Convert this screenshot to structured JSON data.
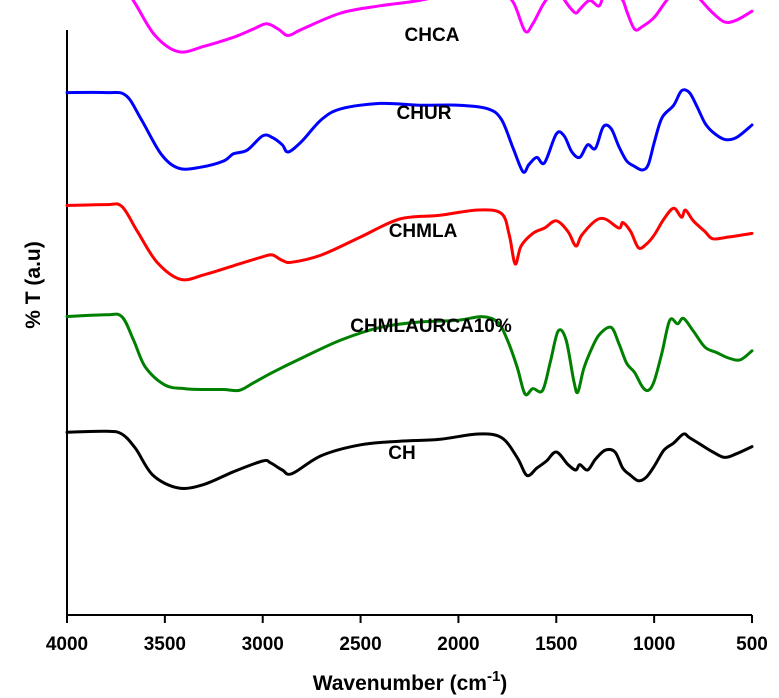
{
  "chart_data": {
    "type": "line",
    "xlabel": "Wavenumber (cm",
    "xlabel_sup": "-1",
    "xlabel_end": ")",
    "ylabel": "% T (a.u)",
    "xlim": [
      4000,
      500
    ],
    "x_reversed": true,
    "xticks": [
      4000,
      3500,
      3000,
      2500,
      2000,
      1500,
      1000,
      500
    ],
    "y_ticks_shown": false,
    "grid": false,
    "legend": "none (series labelled directly above each curve)",
    "series": [
      {
        "name": "CHCA",
        "color": "#ff00ff",
        "offset": 4,
        "points": [
          [
            4000,
            0.93
          ],
          [
            3800,
            0.94
          ],
          [
            3720,
            0.92
          ],
          [
            3650,
            0.7
          ],
          [
            3550,
            0.35
          ],
          [
            3430,
            0.17
          ],
          [
            3300,
            0.23
          ],
          [
            3150,
            0.33
          ],
          [
            3050,
            0.42
          ],
          [
            2980,
            0.48
          ],
          [
            2920,
            0.42
          ],
          [
            2870,
            0.35
          ],
          [
            2800,
            0.42
          ],
          [
            2600,
            0.6
          ],
          [
            2400,
            0.68
          ],
          [
            2200,
            0.74
          ],
          [
            2000,
            0.84
          ],
          [
            1900,
            0.92
          ],
          [
            1800,
            0.88
          ],
          [
            1720,
            0.72
          ],
          [
            1660,
            0.4
          ],
          [
            1620,
            0.48
          ],
          [
            1560,
            0.72
          ],
          [
            1500,
            0.84
          ],
          [
            1430,
            0.66
          ],
          [
            1400,
            0.6
          ],
          [
            1380,
            0.64
          ],
          [
            1330,
            0.74
          ],
          [
            1280,
            0.68
          ],
          [
            1250,
            0.86
          ],
          [
            1210,
            0.86
          ],
          [
            1160,
            0.74
          ],
          [
            1140,
            0.62
          ],
          [
            1100,
            0.42
          ],
          [
            1060,
            0.45
          ],
          [
            1000,
            0.55
          ],
          [
            950,
            0.7
          ],
          [
            900,
            0.84
          ],
          [
            860,
            0.92
          ],
          [
            820,
            0.88
          ],
          [
            760,
            0.74
          ],
          [
            700,
            0.6
          ],
          [
            640,
            0.5
          ],
          [
            580,
            0.52
          ],
          [
            500,
            0.62
          ]
        ]
      },
      {
        "name": "CHUR",
        "color": "#0000ff",
        "offset": 3,
        "points": [
          [
            4000,
            0.96
          ],
          [
            3800,
            0.96
          ],
          [
            3700,
            0.93
          ],
          [
            3620,
            0.66
          ],
          [
            3520,
            0.28
          ],
          [
            3430,
            0.12
          ],
          [
            3320,
            0.13
          ],
          [
            3200,
            0.2
          ],
          [
            3150,
            0.28
          ],
          [
            3080,
            0.32
          ],
          [
            3000,
            0.48
          ],
          [
            2950,
            0.46
          ],
          [
            2900,
            0.38
          ],
          [
            2870,
            0.3
          ],
          [
            2800,
            0.42
          ],
          [
            2700,
            0.66
          ],
          [
            2600,
            0.78
          ],
          [
            2400,
            0.84
          ],
          [
            2200,
            0.82
          ],
          [
            2000,
            0.82
          ],
          [
            1850,
            0.78
          ],
          [
            1780,
            0.66
          ],
          [
            1720,
            0.34
          ],
          [
            1670,
            0.08
          ],
          [
            1640,
            0.16
          ],
          [
            1600,
            0.24
          ],
          [
            1560,
            0.18
          ],
          [
            1500,
            0.5
          ],
          [
            1460,
            0.48
          ],
          [
            1420,
            0.3
          ],
          [
            1380,
            0.24
          ],
          [
            1340,
            0.38
          ],
          [
            1300,
            0.34
          ],
          [
            1260,
            0.58
          ],
          [
            1220,
            0.56
          ],
          [
            1180,
            0.36
          ],
          [
            1140,
            0.2
          ],
          [
            1100,
            0.14
          ],
          [
            1060,
            0.1
          ],
          [
            1030,
            0.16
          ],
          [
            1000,
            0.4
          ],
          [
            960,
            0.68
          ],
          [
            900,
            0.82
          ],
          [
            860,
            0.98
          ],
          [
            820,
            0.96
          ],
          [
            780,
            0.8
          ],
          [
            740,
            0.62
          ],
          [
            700,
            0.52
          ],
          [
            640,
            0.44
          ],
          [
            580,
            0.46
          ],
          [
            500,
            0.6
          ]
        ]
      },
      {
        "name": "CHMLA",
        "color": "#ff0000",
        "offset": 2,
        "points": [
          [
            4000,
            0.95
          ],
          [
            3800,
            0.96
          ],
          [
            3720,
            0.94
          ],
          [
            3640,
            0.66
          ],
          [
            3540,
            0.32
          ],
          [
            3420,
            0.13
          ],
          [
            3300,
            0.18
          ],
          [
            3150,
            0.28
          ],
          [
            3000,
            0.38
          ],
          [
            2950,
            0.4
          ],
          [
            2900,
            0.34
          ],
          [
            2850,
            0.32
          ],
          [
            2700,
            0.4
          ],
          [
            2500,
            0.6
          ],
          [
            2300,
            0.8
          ],
          [
            2100,
            0.84
          ],
          [
            1900,
            0.9
          ],
          [
            1780,
            0.86
          ],
          [
            1740,
            0.62
          ],
          [
            1710,
            0.3
          ],
          [
            1680,
            0.5
          ],
          [
            1620,
            0.64
          ],
          [
            1560,
            0.7
          ],
          [
            1500,
            0.78
          ],
          [
            1440,
            0.66
          ],
          [
            1400,
            0.5
          ],
          [
            1370,
            0.62
          ],
          [
            1300,
            0.78
          ],
          [
            1250,
            0.8
          ],
          [
            1180,
            0.7
          ],
          [
            1160,
            0.76
          ],
          [
            1120,
            0.66
          ],
          [
            1080,
            0.48
          ],
          [
            1040,
            0.52
          ],
          [
            1000,
            0.62
          ],
          [
            950,
            0.8
          ],
          [
            900,
            0.92
          ],
          [
            860,
            0.82
          ],
          [
            840,
            0.9
          ],
          [
            800,
            0.78
          ],
          [
            740,
            0.66
          ],
          [
            700,
            0.58
          ],
          [
            620,
            0.6
          ],
          [
            500,
            0.64
          ]
        ]
      },
      {
        "name": "CHMLAURCA10%",
        "color": "#008000",
        "offset": 1,
        "points": [
          [
            4000,
            0.96
          ],
          [
            3800,
            0.98
          ],
          [
            3720,
            0.96
          ],
          [
            3660,
            0.7
          ],
          [
            3600,
            0.4
          ],
          [
            3500,
            0.2
          ],
          [
            3400,
            0.16
          ],
          [
            3300,
            0.15
          ],
          [
            3200,
            0.15
          ],
          [
            3120,
            0.14
          ],
          [
            3050,
            0.22
          ],
          [
            2950,
            0.34
          ],
          [
            2800,
            0.5
          ],
          [
            2600,
            0.7
          ],
          [
            2400,
            0.84
          ],
          [
            2200,
            0.9
          ],
          [
            2000,
            0.92
          ],
          [
            1880,
            0.96
          ],
          [
            1800,
            0.9
          ],
          [
            1750,
            0.7
          ],
          [
            1700,
            0.4
          ],
          [
            1660,
            0.1
          ],
          [
            1620,
            0.16
          ],
          [
            1570,
            0.14
          ],
          [
            1530,
            0.46
          ],
          [
            1490,
            0.8
          ],
          [
            1450,
            0.7
          ],
          [
            1410,
            0.24
          ],
          [
            1390,
            0.12
          ],
          [
            1360,
            0.38
          ],
          [
            1320,
            0.6
          ],
          [
            1280,
            0.76
          ],
          [
            1220,
            0.84
          ],
          [
            1180,
            0.66
          ],
          [
            1140,
            0.44
          ],
          [
            1100,
            0.34
          ],
          [
            1060,
            0.18
          ],
          [
            1030,
            0.14
          ],
          [
            1000,
            0.24
          ],
          [
            960,
            0.56
          ],
          [
            920,
            0.92
          ],
          [
            880,
            0.88
          ],
          [
            850,
            0.94
          ],
          [
            800,
            0.8
          ],
          [
            740,
            0.62
          ],
          [
            680,
            0.56
          ],
          [
            620,
            0.5
          ],
          [
            560,
            0.48
          ],
          [
            500,
            0.58
          ]
        ]
      },
      {
        "name": "CH",
        "color": "#000000",
        "offset": 0,
        "points": [
          [
            4000,
            0.92
          ],
          [
            3800,
            0.93
          ],
          [
            3720,
            0.9
          ],
          [
            3650,
            0.74
          ],
          [
            3560,
            0.44
          ],
          [
            3430,
            0.3
          ],
          [
            3300,
            0.34
          ],
          [
            3150,
            0.48
          ],
          [
            3000,
            0.6
          ],
          [
            2960,
            0.58
          ],
          [
            2900,
            0.5
          ],
          [
            2850,
            0.46
          ],
          [
            2700,
            0.66
          ],
          [
            2500,
            0.78
          ],
          [
            2300,
            0.82
          ],
          [
            2100,
            0.84
          ],
          [
            1900,
            0.9
          ],
          [
            1780,
            0.86
          ],
          [
            1700,
            0.64
          ],
          [
            1650,
            0.44
          ],
          [
            1600,
            0.52
          ],
          [
            1550,
            0.6
          ],
          [
            1500,
            0.7
          ],
          [
            1440,
            0.56
          ],
          [
            1400,
            0.5
          ],
          [
            1380,
            0.56
          ],
          [
            1340,
            0.5
          ],
          [
            1300,
            0.62
          ],
          [
            1250,
            0.72
          ],
          [
            1200,
            0.7
          ],
          [
            1160,
            0.52
          ],
          [
            1120,
            0.44
          ],
          [
            1080,
            0.38
          ],
          [
            1040,
            0.42
          ],
          [
            1000,
            0.54
          ],
          [
            950,
            0.72
          ],
          [
            900,
            0.8
          ],
          [
            850,
            0.9
          ],
          [
            820,
            0.86
          ],
          [
            760,
            0.78
          ],
          [
            700,
            0.7
          ],
          [
            640,
            0.64
          ],
          [
            580,
            0.68
          ],
          [
            500,
            0.76
          ]
        ]
      }
    ]
  }
}
